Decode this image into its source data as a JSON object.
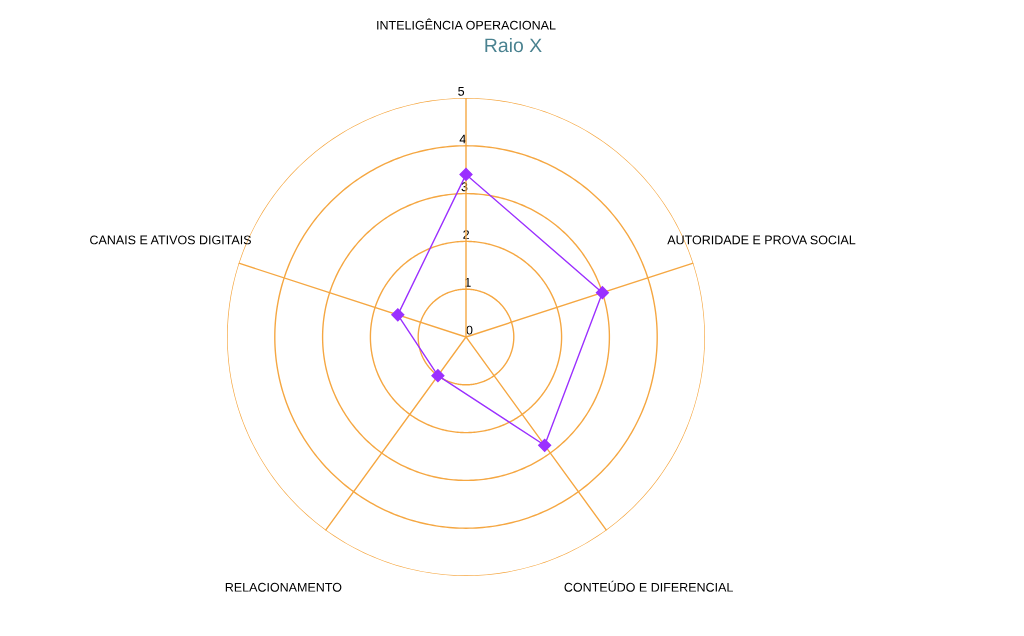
{
  "chart_data": {
    "type": "radar",
    "title": "Raio X",
    "categories": [
      "INTELIGÊNCIA OPERACIONAL",
      "AUTORIDADE E PROVA SOCIAL",
      "CONTEÚDO E DIFERENCIAL",
      "RELACIONAMENTO",
      "CANAIS E ATIVOS DIGITAIS"
    ],
    "series": [
      {
        "color": "#9b30ff",
        "values": [
          3.4,
          3.0,
          2.8,
          1.0,
          1.5
        ]
      }
    ],
    "ylim": [
      0,
      5
    ],
    "yticks": [
      0,
      1,
      2,
      3,
      4,
      5
    ],
    "grid": true,
    "marker": "diamond",
    "line_style": "solid"
  }
}
